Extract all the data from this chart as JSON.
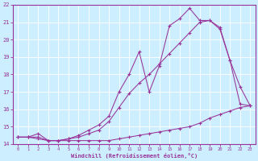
{
  "title": "",
  "xlabel": "Windchill (Refroidissement éolien,°C)",
  "background_color": "#cceeff",
  "grid_color": "#ffffff",
  "line_color": "#993399",
  "x": [
    0,
    1,
    2,
    3,
    4,
    5,
    6,
    7,
    8,
    9,
    10,
    11,
    12,
    13,
    14,
    15,
    16,
    17,
    18,
    19,
    20,
    21,
    22,
    23
  ],
  "line1": [
    14.4,
    14.4,
    14.4,
    14.2,
    14.2,
    14.2,
    14.2,
    14.2,
    14.2,
    14.2,
    14.3,
    14.4,
    14.5,
    14.6,
    14.7,
    14.8,
    14.9,
    15.0,
    15.2,
    15.5,
    15.7,
    15.9,
    16.1,
    16.2
  ],
  "line2": [
    14.4,
    14.4,
    14.3,
    14.2,
    14.2,
    14.3,
    14.4,
    14.6,
    14.8,
    15.3,
    16.1,
    16.9,
    17.5,
    18.0,
    18.6,
    19.2,
    19.8,
    20.4,
    21.0,
    21.1,
    20.7,
    18.8,
    16.3,
    16.2
  ],
  "line3": [
    14.4,
    14.4,
    14.6,
    14.2,
    14.2,
    14.3,
    14.5,
    14.8,
    15.1,
    15.6,
    17.0,
    18.0,
    19.3,
    17.0,
    18.5,
    20.8,
    21.2,
    21.8,
    21.1,
    21.1,
    20.6,
    18.8,
    17.3,
    16.2
  ],
  "ylim": [
    14.0,
    22.0
  ],
  "xlim": [
    -0.5,
    23.5
  ],
  "yticks": [
    14,
    15,
    16,
    17,
    18,
    19,
    20,
    21,
    22
  ],
  "xticks": [
    0,
    1,
    2,
    3,
    4,
    5,
    6,
    7,
    8,
    9,
    10,
    11,
    12,
    13,
    14,
    15,
    16,
    17,
    18,
    19,
    20,
    21,
    22,
    23
  ]
}
